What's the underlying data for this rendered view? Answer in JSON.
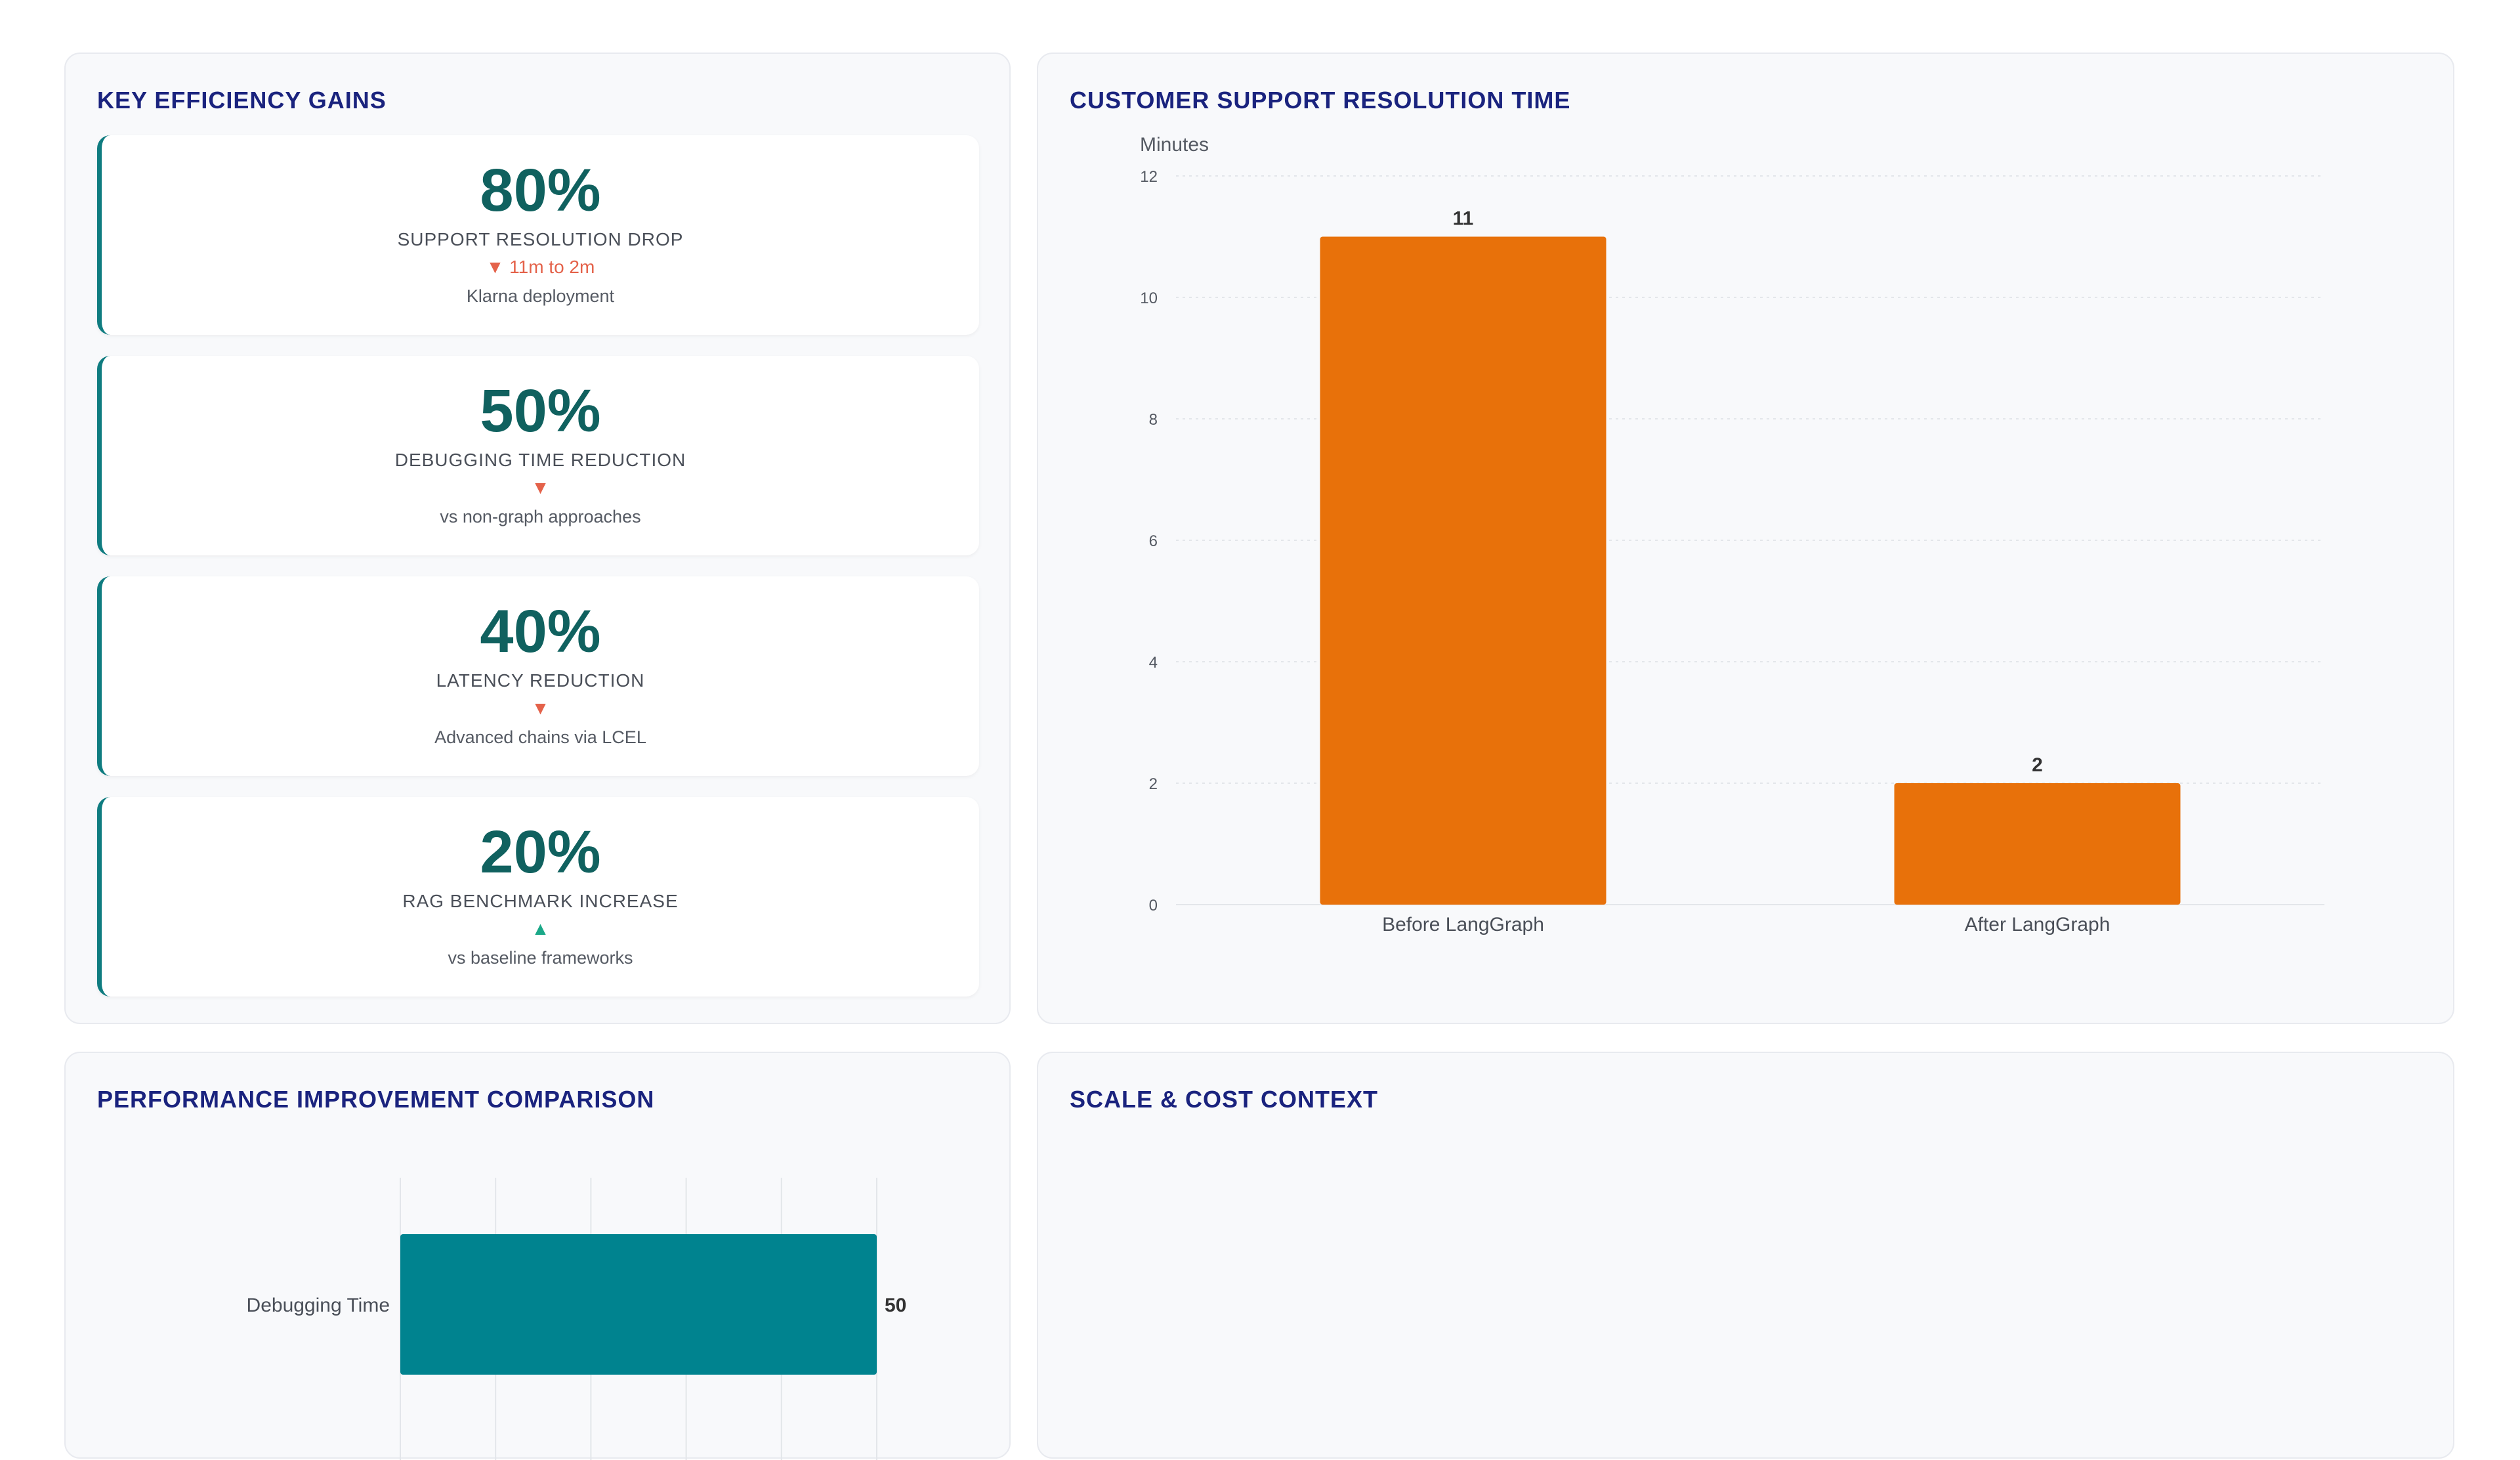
{
  "kpi_panel": {
    "title": "KEY EFFICIENCY GAINS",
    "cards": [
      {
        "value": "80%",
        "label": "SUPPORT RESOLUTION DROP",
        "delta": "▼ 11m to 2m",
        "direction": "down",
        "note": "Klarna deployment"
      },
      {
        "value": "50%",
        "label": "DEBUGGING TIME REDUCTION",
        "delta": "▼",
        "direction": "down",
        "note": "vs non-graph approaches"
      },
      {
        "value": "40%",
        "label": "LATENCY REDUCTION",
        "delta": "▼",
        "direction": "down",
        "note": "Advanced chains via LCEL"
      },
      {
        "value": "20%",
        "label": "RAG BENCHMARK INCREASE",
        "delta": "▲",
        "direction": "up",
        "note": "vs baseline frameworks"
      }
    ]
  },
  "resolution_panel": {
    "title": "CUSTOMER SUPPORT RESOLUTION TIME"
  },
  "perf_panel": {
    "title": "PERFORMANCE IMPROVEMENT COMPARISON"
  },
  "scale_panel": {
    "title": "SCALE & COST CONTEXT"
  },
  "chart_data": [
    {
      "type": "bar",
      "categories": [
        "Before LangGraph",
        "After LangGraph"
      ],
      "values": [
        11,
        2
      ],
      "ylabel": "Minutes",
      "ylim": [
        0,
        12
      ],
      "yticks": [
        0,
        2,
        4,
        6,
        8,
        10,
        12
      ],
      "grid": true,
      "color": "#e8710a"
    },
    {
      "type": "bar",
      "orientation": "horizontal",
      "categories": [
        "Debugging Time"
      ],
      "values": [
        50
      ],
      "xlim": [
        0,
        50
      ],
      "grid": true,
      "color": "#00838f"
    }
  ]
}
